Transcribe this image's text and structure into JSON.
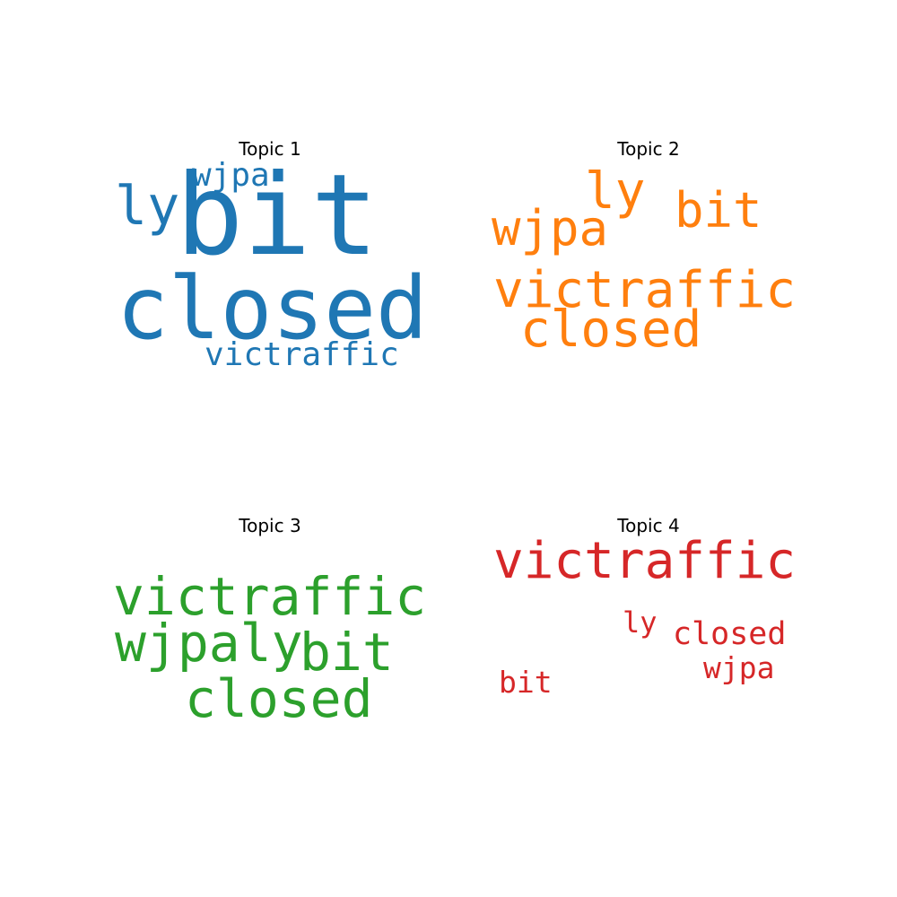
{
  "chart_data": [
    {
      "type": "wordcloud",
      "title": "Topic 1",
      "color": "#1f77b4",
      "words": [
        {
          "text": "bit",
          "weight": 1.0
        },
        {
          "text": "closed",
          "weight": 0.8
        },
        {
          "text": "ly",
          "weight": 0.45
        },
        {
          "text": "wjpa",
          "weight": 0.3
        },
        {
          "text": "victraffic",
          "weight": 0.28
        }
      ]
    },
    {
      "type": "wordcloud",
      "title": "Topic 2",
      "color": "#ff7f0e",
      "words": [
        {
          "text": "victraffic",
          "weight": 1.0
        },
        {
          "text": "closed",
          "weight": 0.98
        },
        {
          "text": "ly",
          "weight": 0.95
        },
        {
          "text": "wjpa",
          "weight": 0.9
        },
        {
          "text": "bit",
          "weight": 0.85
        }
      ]
    },
    {
      "type": "wordcloud",
      "title": "Topic 3",
      "color": "#2ca02c",
      "words": [
        {
          "text": "victraffic",
          "weight": 1.0
        },
        {
          "text": "wjpaly",
          "weight": 0.98
        },
        {
          "text": "bit",
          "weight": 0.96
        },
        {
          "text": "closed",
          "weight": 0.94
        }
      ]
    },
    {
      "type": "wordcloud",
      "title": "Topic 4",
      "color": "#d62728",
      "words": [
        {
          "text": "victraffic",
          "weight": 1.0
        },
        {
          "text": "closed",
          "weight": 0.5
        },
        {
          "text": "wjpa",
          "weight": 0.48
        },
        {
          "text": "bit",
          "weight": 0.47
        },
        {
          "text": "ly",
          "weight": 0.45
        }
      ]
    }
  ]
}
